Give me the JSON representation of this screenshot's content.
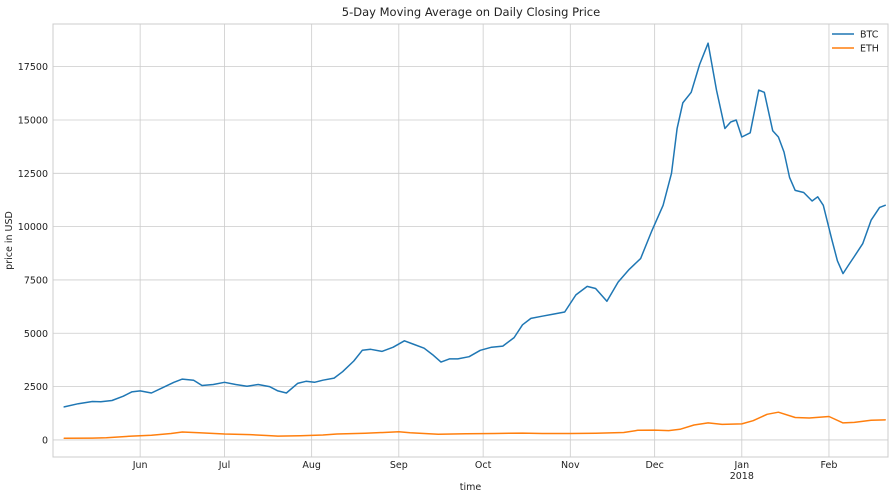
{
  "chart_data": {
    "type": "line",
    "title": "5-Day Moving Average on Daily Closing Price",
    "xlabel": "time",
    "ylabel": "price in USD",
    "xlim": [
      "2017-05-01",
      "2018-02-22"
    ],
    "ylim": [
      -800,
      19500
    ],
    "grid": true,
    "legend_position": "top-right",
    "x_ticks": [
      {
        "date": "2017-06-01",
        "label": "Jun",
        "sublabel": ""
      },
      {
        "date": "2017-07-01",
        "label": "Jul",
        "sublabel": ""
      },
      {
        "date": "2017-08-01",
        "label": "Aug",
        "sublabel": ""
      },
      {
        "date": "2017-09-01",
        "label": "Sep",
        "sublabel": ""
      },
      {
        "date": "2017-10-01",
        "label": "Oct",
        "sublabel": ""
      },
      {
        "date": "2017-11-01",
        "label": "Nov",
        "sublabel": ""
      },
      {
        "date": "2017-12-01",
        "label": "Dec",
        "sublabel": ""
      },
      {
        "date": "2018-01-01",
        "label": "Jan",
        "sublabel": "2018"
      },
      {
        "date": "2018-02-01",
        "label": "Feb",
        "sublabel": ""
      }
    ],
    "y_ticks": [
      0,
      2500,
      5000,
      7500,
      10000,
      12500,
      15000,
      17500
    ],
    "series": [
      {
        "name": "BTC",
        "color": "#1f77b4",
        "points": [
          [
            "2017-05-05",
            1550
          ],
          [
            "2017-05-10",
            1700
          ],
          [
            "2017-05-15",
            1800
          ],
          [
            "2017-05-18",
            1790
          ],
          [
            "2017-05-22",
            1850
          ],
          [
            "2017-05-26",
            2050
          ],
          [
            "2017-05-29",
            2250
          ],
          [
            "2017-06-01",
            2300
          ],
          [
            "2017-06-05",
            2200
          ],
          [
            "2017-06-09",
            2450
          ],
          [
            "2017-06-13",
            2700
          ],
          [
            "2017-06-16",
            2850
          ],
          [
            "2017-06-20",
            2800
          ],
          [
            "2017-06-23",
            2550
          ],
          [
            "2017-06-27",
            2600
          ],
          [
            "2017-07-01",
            2700
          ],
          [
            "2017-07-05",
            2600
          ],
          [
            "2017-07-09",
            2520
          ],
          [
            "2017-07-13",
            2600
          ],
          [
            "2017-07-17",
            2500
          ],
          [
            "2017-07-20",
            2300
          ],
          [
            "2017-07-23",
            2200
          ],
          [
            "2017-07-27",
            2650
          ],
          [
            "2017-07-30",
            2750
          ],
          [
            "2017-08-02",
            2700
          ],
          [
            "2017-08-05",
            2800
          ],
          [
            "2017-08-09",
            2900
          ],
          [
            "2017-08-12",
            3200
          ],
          [
            "2017-08-16",
            3700
          ],
          [
            "2017-08-19",
            4200
          ],
          [
            "2017-08-22",
            4250
          ],
          [
            "2017-08-26",
            4150
          ],
          [
            "2017-08-30",
            4350
          ],
          [
            "2017-09-03",
            4650
          ],
          [
            "2017-09-06",
            4500
          ],
          [
            "2017-09-10",
            4300
          ],
          [
            "2017-09-13",
            4000
          ],
          [
            "2017-09-16",
            3650
          ],
          [
            "2017-09-19",
            3800
          ],
          [
            "2017-09-22",
            3800
          ],
          [
            "2017-09-26",
            3900
          ],
          [
            "2017-09-30",
            4200
          ],
          [
            "2017-10-04",
            4350
          ],
          [
            "2017-10-08",
            4400
          ],
          [
            "2017-10-12",
            4800
          ],
          [
            "2017-10-15",
            5400
          ],
          [
            "2017-10-18",
            5700
          ],
          [
            "2017-10-22",
            5800
          ],
          [
            "2017-10-26",
            5900
          ],
          [
            "2017-10-30",
            6000
          ],
          [
            "2017-11-03",
            6800
          ],
          [
            "2017-11-07",
            7200
          ],
          [
            "2017-11-10",
            7100
          ],
          [
            "2017-11-14",
            6500
          ],
          [
            "2017-11-18",
            7400
          ],
          [
            "2017-11-22",
            8000
          ],
          [
            "2017-11-26",
            8500
          ],
          [
            "2017-11-30",
            9800
          ],
          [
            "2017-12-04",
            11000
          ],
          [
            "2017-12-07",
            12500
          ],
          [
            "2017-12-09",
            14600
          ],
          [
            "2017-12-11",
            15800
          ],
          [
            "2017-12-14",
            16300
          ],
          [
            "2017-12-17",
            17600
          ],
          [
            "2017-12-20",
            18600
          ],
          [
            "2017-12-23",
            16400
          ],
          [
            "2017-12-26",
            14600
          ],
          [
            "2017-12-28",
            14900
          ],
          [
            "2017-12-30",
            15000
          ],
          [
            "2018-01-01",
            14200
          ],
          [
            "2018-01-04",
            14400
          ],
          [
            "2018-01-07",
            16400
          ],
          [
            "2018-01-09",
            16300
          ],
          [
            "2018-01-12",
            14500
          ],
          [
            "2018-01-14",
            14200
          ],
          [
            "2018-01-16",
            13500
          ],
          [
            "2018-01-18",
            12300
          ],
          [
            "2018-01-20",
            11700
          ],
          [
            "2018-01-23",
            11600
          ],
          [
            "2018-01-26",
            11200
          ],
          [
            "2018-01-28",
            11400
          ],
          [
            "2018-01-30",
            11000
          ],
          [
            "2018-02-02",
            9400
          ],
          [
            "2018-02-04",
            8400
          ],
          [
            "2018-02-06",
            7800
          ],
          [
            "2018-02-08",
            8200
          ],
          [
            "2018-02-10",
            8600
          ],
          [
            "2018-02-13",
            9200
          ],
          [
            "2018-02-16",
            10300
          ],
          [
            "2018-02-19",
            10900
          ],
          [
            "2018-02-21",
            11000
          ]
        ]
      },
      {
        "name": "ETH",
        "color": "#ff7f0e",
        "points": [
          [
            "2017-05-05",
            80
          ],
          [
            "2017-05-15",
            88
          ],
          [
            "2017-05-20",
            100
          ],
          [
            "2017-05-29",
            180
          ],
          [
            "2017-06-05",
            220
          ],
          [
            "2017-06-12",
            300
          ],
          [
            "2017-06-16",
            370
          ],
          [
            "2017-06-22",
            340
          ],
          [
            "2017-07-01",
            280
          ],
          [
            "2017-07-10",
            250
          ],
          [
            "2017-07-16",
            210
          ],
          [
            "2017-07-20",
            180
          ],
          [
            "2017-07-28",
            200
          ],
          [
            "2017-08-05",
            230
          ],
          [
            "2017-08-10",
            280
          ],
          [
            "2017-08-20",
            310
          ],
          [
            "2017-09-01",
            380
          ],
          [
            "2017-09-05",
            340
          ],
          [
            "2017-09-15",
            270
          ],
          [
            "2017-09-25",
            290
          ],
          [
            "2017-10-05",
            300
          ],
          [
            "2017-10-15",
            320
          ],
          [
            "2017-10-22",
            300
          ],
          [
            "2017-11-01",
            300
          ],
          [
            "2017-11-10",
            310
          ],
          [
            "2017-11-20",
            350
          ],
          [
            "2017-11-25",
            450
          ],
          [
            "2017-12-01",
            460
          ],
          [
            "2017-12-06",
            440
          ],
          [
            "2017-12-10",
            500
          ],
          [
            "2017-12-15",
            700
          ],
          [
            "2017-12-20",
            800
          ],
          [
            "2017-12-25",
            730
          ],
          [
            "2018-01-01",
            750
          ],
          [
            "2018-01-05",
            900
          ],
          [
            "2018-01-10",
            1200
          ],
          [
            "2018-01-14",
            1300
          ],
          [
            "2018-01-20",
            1050
          ],
          [
            "2018-01-25",
            1030
          ],
          [
            "2018-02-01",
            1100
          ],
          [
            "2018-02-06",
            800
          ],
          [
            "2018-02-10",
            820
          ],
          [
            "2018-02-16",
            920
          ],
          [
            "2018-02-21",
            940
          ]
        ]
      }
    ]
  }
}
